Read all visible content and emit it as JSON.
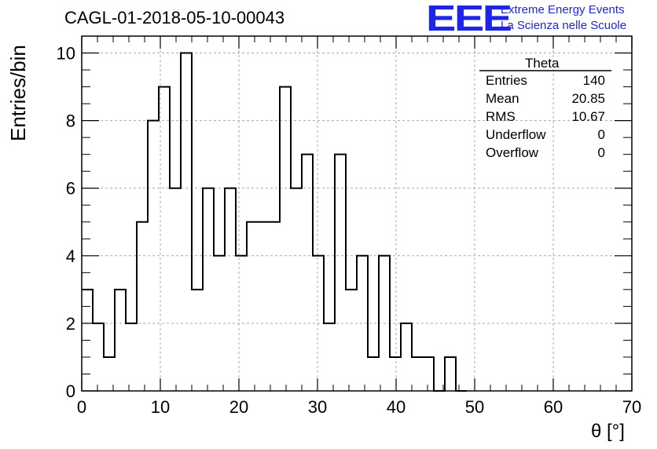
{
  "title": "CAGL-01-2018-05-10-00043",
  "logo": {
    "mark": "EEE",
    "line1": "Extreme Energy Events",
    "line2": "La Scienza nelle Scuole",
    "color": "#1f25e6"
  },
  "stats": {
    "title": "Theta",
    "rows": [
      {
        "label": "Entries",
        "value": "140"
      },
      {
        "label": "Mean",
        "value": "20.85"
      },
      {
        "label": "RMS",
        "value": "10.67"
      },
      {
        "label": "Underflow",
        "value": "0"
      },
      {
        "label": "Overflow",
        "value": "0"
      }
    ]
  },
  "chart_data": {
    "type": "bar",
    "style": "step-histogram",
    "xlabel": "θ [°]",
    "ylabel": "Entries/bin",
    "xlim": [
      0,
      70
    ],
    "ylim": [
      0,
      10.5
    ],
    "bin_width": 1.4,
    "bin_low_edges": [
      0,
      1.4,
      2.8,
      4.2,
      5.6,
      7.0,
      8.4,
      9.8,
      11.2,
      12.6,
      14.0,
      15.4,
      16.8,
      18.2,
      19.6,
      21.0,
      22.4,
      23.8,
      25.2,
      26.6,
      28.0,
      29.4,
      30.8,
      32.2,
      33.6,
      35.0,
      36.4,
      37.8,
      39.2,
      40.6,
      42.0,
      43.4,
      44.8,
      46.2,
      47.6
    ],
    "values": [
      3,
      2,
      1,
      3,
      2,
      5,
      8,
      9,
      6,
      10,
      3,
      6,
      4,
      6,
      4,
      5,
      5,
      5,
      9,
      6,
      7,
      4,
      2,
      7,
      3,
      4,
      1,
      4,
      1,
      2,
      1,
      1,
      0,
      1,
      0
    ],
    "xticks": [
      0,
      10,
      20,
      30,
      40,
      50,
      60,
      70
    ],
    "yticks": [
      0,
      2,
      4,
      6,
      8,
      10
    ],
    "grid": true,
    "line_color": "#000000"
  }
}
